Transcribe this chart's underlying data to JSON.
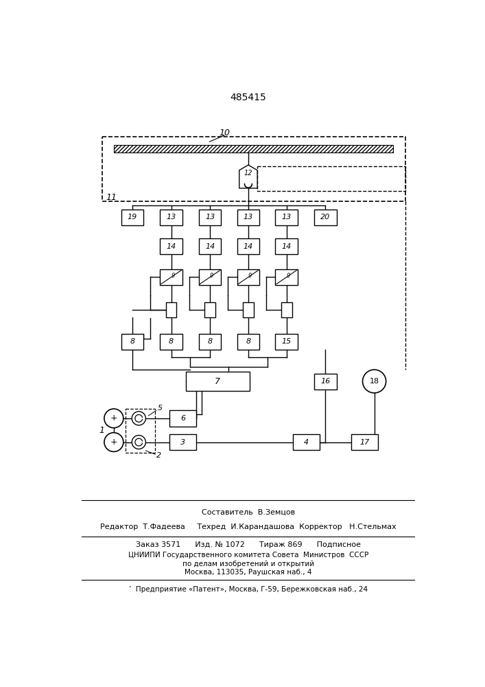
{
  "title": "485415",
  "bg_color": "#ffffff",
  "row13_labels": [
    "19",
    "13",
    "13",
    "13",
    "13",
    "20"
  ],
  "row8_labels": [
    "8",
    "8",
    "8",
    "8",
    "15"
  ],
  "footer_line1": "Составитель  В.Земцов",
  "footer_line2": "Редактор  Т.Фадеева     Техред  И.Карандашова  Корректор   Н.Стельмах",
  "footer_line3": "Заказ 3571      Изд. № 1072      Тираж 869      Подписное",
  "footer_line4": "ЦНИИПИ Государственного комитета Совета  Министров  СССР",
  "footer_line5": "по делам изобретений и открытий",
  "footer_line6": "Москва, 113035, Раушская наб., 4",
  "footer_line7": "’  Предприятие «Патент», Москва, Г-59, Бережковская наб., 24"
}
